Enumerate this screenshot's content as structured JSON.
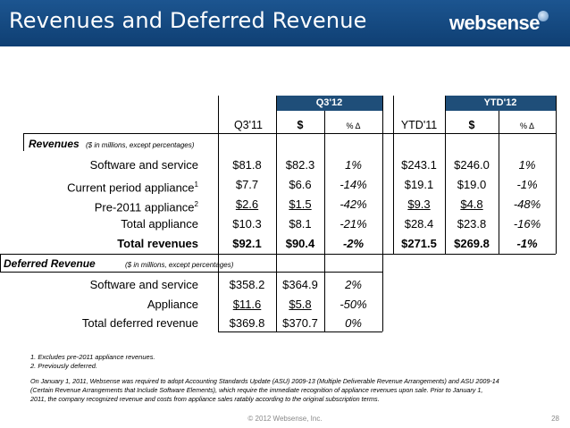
{
  "header": {
    "title": "Revenues and Deferred Revenue",
    "logo": "websense"
  },
  "columns": {
    "band_q": "Q3'12",
    "band_ytd": "YTD'12",
    "q3_11": "Q3'11",
    "q_dollar": "$",
    "q_pct": "% Δ",
    "ytd_11": "YTD'11",
    "ytd_dollar": "$",
    "ytd_pct": "% Δ"
  },
  "revenues": {
    "heading": "Revenues",
    "subheading": "($ in millions, except percentages)",
    "rows": [
      {
        "label": "Software and service",
        "q3_11": "$81.8",
        "q3_12": "$82.3",
        "q_pct": "1%",
        "ytd_11": "$243.1",
        "ytd_12": "$246.0",
        "ytd_pct": "1%"
      },
      {
        "label": "Current period appliance",
        "sup": "1",
        "q3_11": "$7.7",
        "q3_12": "$6.6",
        "q_pct": "-14%",
        "ytd_11": "$19.1",
        "ytd_12": "$19.0",
        "ytd_pct": "-1%"
      },
      {
        "label": "Pre-2011 appliance",
        "sup": "2",
        "q3_11": "$2.6",
        "q3_12": "$1.5",
        "q_pct": "-42%",
        "ytd_11": "$9.3",
        "ytd_12": "$4.8",
        "ytd_pct": "-48%"
      },
      {
        "label": "Total appliance",
        "q3_11": "$10.3",
        "q3_12": "$8.1",
        "q_pct": "-21%",
        "ytd_11": "$28.4",
        "ytd_12": "$23.8",
        "ytd_pct": "-16%"
      },
      {
        "label": "Total revenues",
        "q3_11": "$92.1",
        "q3_12": "$90.4",
        "q_pct": "-2%",
        "ytd_11": "$271.5",
        "ytd_12": "$269.8",
        "ytd_pct": "-1%"
      }
    ]
  },
  "deferred": {
    "heading": "Deferred Revenue",
    "subheading": "($ in millions, except percentages)",
    "rows": [
      {
        "label": "Software and service",
        "q3_11": "$358.2",
        "q3_12": "$364.9",
        "q_pct": "2%"
      },
      {
        "label": "Appliance",
        "q3_11": "$11.6",
        "q3_12": "$5.8",
        "q_pct": "-50%"
      },
      {
        "label": "Total deferred revenue",
        "q3_11": "$369.8",
        "q3_12": "$370.7",
        "q_pct": "0%"
      }
    ]
  },
  "notes": [
    "1.  Excludes pre-2011 appliance revenues.",
    "2.  Previously deferred."
  ],
  "footnote": [
    "On January 1, 2011, Websense was required to adopt Accounting Standards Update (ASU) 2009-13 (Multiple Deliverable Revenue Arrangements) and ASU 2009-14",
    "(Certain Revenue Arrangements that Include Software Elements), which require the immediate recognition of appliance revenues upon sale. Prior to January 1,",
    "2011, the company recognized revenue and costs from appliance sales ratably according to the original subscription terms."
  ],
  "footer": {
    "copyright": "© 2012 Websense, Inc.",
    "page": "28"
  }
}
